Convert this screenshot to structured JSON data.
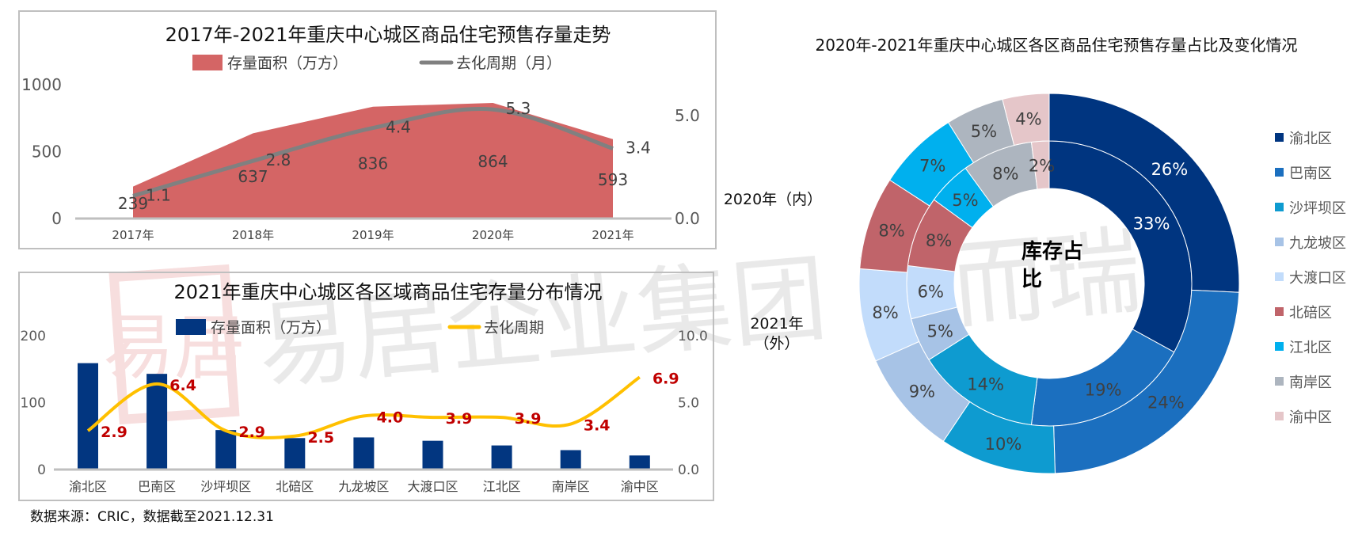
{
  "watermark": {
    "text": "易居企业集团 克而瑞",
    "logo_text": "易居"
  },
  "source_note": "数据来源：CRIC，数据截至2021.12.31",
  "colors": {
    "area": "#d46565",
    "gray_line": "#808080",
    "bar": "#023680",
    "gold_line": "#ffc000",
    "red_label": "#c00000"
  },
  "chart_data": [
    {
      "type": "area+line",
      "title": "2017年-2021年重庆中心城区商品住宅预售存量走势",
      "categories": [
        "2017年",
        "2018年",
        "2019年",
        "2020年",
        "2021年"
      ],
      "series": [
        {
          "name": "存量面积（万方）",
          "type": "area",
          "axis": "left",
          "values": [
            239,
            637,
            836,
            864,
            593
          ]
        },
        {
          "name": "去化周期（月）",
          "type": "line",
          "axis": "right",
          "values": [
            1.1,
            2.8,
            4.4,
            5.3,
            3.4
          ]
        }
      ],
      "y_left": {
        "ticks": [
          "0",
          "500",
          "1000"
        ],
        "range": [
          0,
          1000
        ]
      },
      "y_right": {
        "ticks": [
          "0.0",
          "5.0"
        ],
        "range": [
          0,
          6.5
        ]
      },
      "legend": "top",
      "grid": false
    },
    {
      "type": "bar+line",
      "title": "2021年重庆中心城区各区域商品住宅存量分布情况",
      "categories": [
        "渝北区",
        "巴南区",
        "沙坪坝区",
        "北碚区",
        "九龙坡区",
        "大渡口区",
        "江北区",
        "南岸区",
        "渝中区"
      ],
      "series": [
        {
          "name": "存量面积（万方）",
          "type": "bar",
          "axis": "left",
          "values": [
            159,
            143,
            59,
            47,
            48,
            43,
            36,
            29,
            21
          ]
        },
        {
          "name": "去化周期",
          "type": "line",
          "axis": "right",
          "values": [
            2.9,
            6.4,
            2.9,
            2.5,
            4.0,
            3.9,
            3.9,
            3.4,
            6.9
          ],
          "labels": [
            "2.9",
            "6.4",
            "2.9",
            "2.5",
            "4.0",
            "3.9",
            "3.9",
            "3.4",
            "6.9"
          ]
        }
      ],
      "y_left": {
        "ticks": [
          "0",
          "100",
          "200"
        ],
        "range": [
          0,
          200
        ]
      },
      "y_right": {
        "ticks": [
          "0.0",
          "5.0",
          "10.0"
        ],
        "range": [
          0,
          10
        ]
      },
      "legend": "top",
      "grid": false
    },
    {
      "type": "pie",
      "variant": "double-donut",
      "title": "2020年-2021年重庆中心城区各区商品住宅预售存量占比及变化情况",
      "center_label": [
        "库存占",
        "比"
      ],
      "inner_label": "2020年（内）",
      "outer_label": [
        "2021年",
        "（外）"
      ],
      "categories": [
        "渝北区",
        "巴南区",
        "沙坪坝区",
        "九龙坡区",
        "大渡口区",
        "北碚区",
        "江北区",
        "南岸区",
        "渝中区"
      ],
      "colors": [
        "#003580",
        "#1b6fbf",
        "#0e9bd0",
        "#a7c3e6",
        "#c2dcfb",
        "#c0646a",
        "#00b0ee",
        "#adb5bf",
        "#e5c6c9"
      ],
      "series": [
        {
          "name": "2020年",
          "ring": "inner",
          "values": [
            33,
            19,
            14,
            5,
            6,
            8,
            5,
            8,
            2
          ]
        },
        {
          "name": "2021年",
          "ring": "outer",
          "values": [
            26,
            24,
            10,
            9,
            8,
            8,
            7,
            5,
            4
          ]
        }
      ],
      "legend": "right"
    }
  ]
}
